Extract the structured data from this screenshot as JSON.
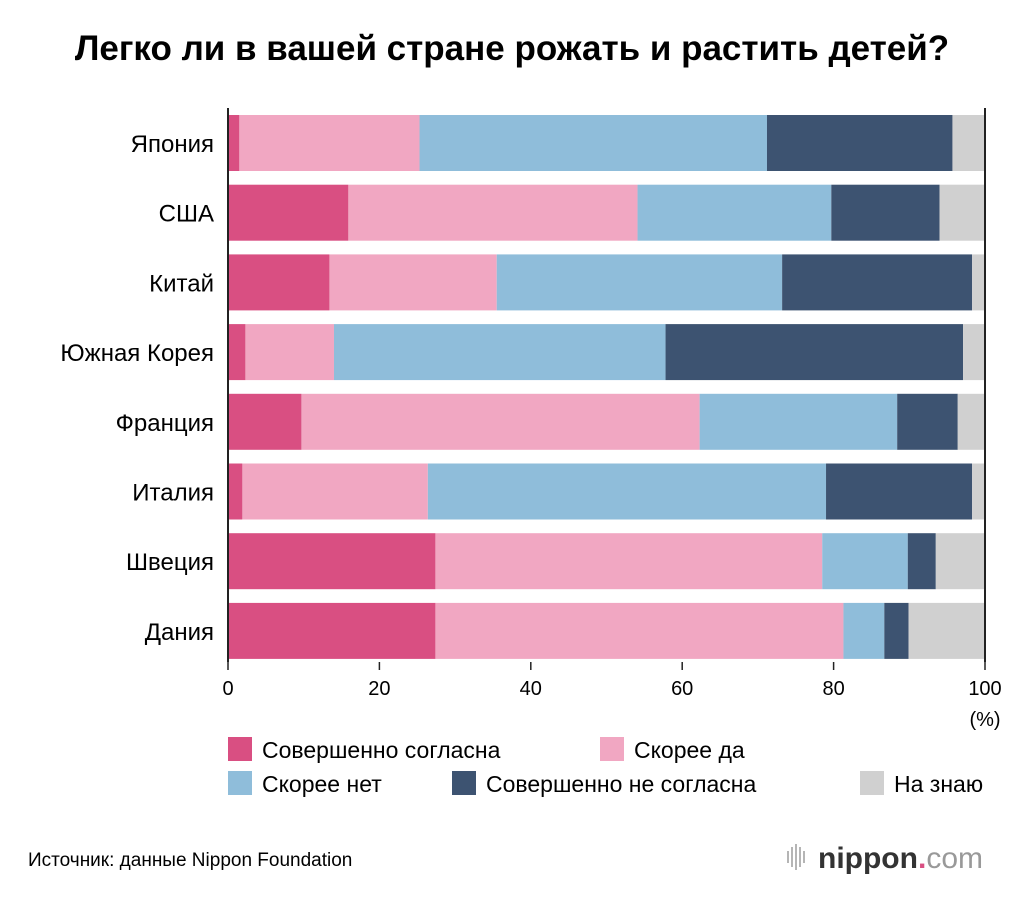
{
  "chart_data": {
    "type": "bar",
    "orientation": "horizontal",
    "stacked": true,
    "title": "Легко ли в вашей стране рожать и растить детей?",
    "categories": [
      "Япония",
      "США",
      "Китай",
      "Южная Корея",
      "Франция",
      "Италия",
      "Швеция",
      "Дания"
    ],
    "series": [
      {
        "name": "Совершенно согласна",
        "color": "#d94f82",
        "values": [
          1.5,
          15.9,
          13.4,
          2.3,
          9.7,
          1.9,
          27.4,
          27.4
        ]
      },
      {
        "name": "Скорее да",
        "color": "#f1a7c2",
        "values": [
          23.8,
          38.2,
          22.1,
          11.7,
          52.6,
          24.5,
          51.1,
          53.9
        ]
      },
      {
        "name": "Скорее нет",
        "color": "#8fbdda",
        "values": [
          45.9,
          25.6,
          37.7,
          43.8,
          26.1,
          52.6,
          11.3,
          5.4
        ]
      },
      {
        "name": "Совершенно не согласна",
        "color": "#3d5371",
        "values": [
          24.5,
          14.3,
          25.1,
          39.3,
          8.0,
          19.3,
          3.7,
          3.2
        ]
      },
      {
        "name": "На знаю",
        "color": "#d0d0d0",
        "values": [
          4.3,
          6.0,
          1.7,
          2.9,
          3.6,
          1.7,
          6.5,
          10.1
        ]
      }
    ],
    "xlim": [
      0,
      100
    ],
    "xticks": [
      "0",
      "20",
      "40",
      "60",
      "80",
      "100"
    ],
    "xunit": "(%)",
    "legend_position": "bottom"
  },
  "source": "Источник: данные Nippon Foundation",
  "brand": {
    "name": "nippon",
    "dot": ".",
    "suffix": "com",
    "icon": "sound-bars-icon",
    "accent": "#d94f82"
  }
}
